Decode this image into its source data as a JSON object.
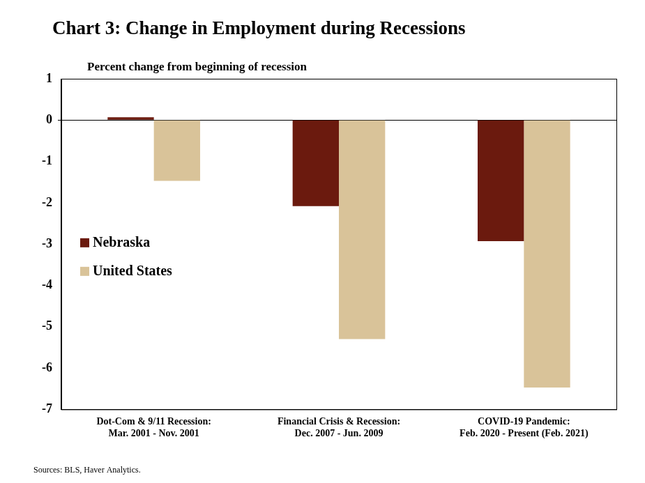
{
  "chart_data": {
    "type": "bar",
    "title": "Chart 3: Change in Employment during Recessions",
    "subtitle": "Percent change from beginning of recession",
    "source": "Sources: BLS, Haver Analytics.",
    "categories": [
      [
        "Dot-Com & 9/11 Recession:",
        "Mar. 2001 - Nov. 2001"
      ],
      [
        "Financial Crisis & Recession:",
        "Dec. 2007 - Jun. 2009"
      ],
      [
        "COVID-19 Pandemic:",
        "Feb. 2020 - Present (Feb. 2021)"
      ]
    ],
    "series": [
      {
        "name": "Nebraska",
        "color": "#6b1a0e",
        "values": [
          0.07,
          -2.08,
          -2.93
        ]
      },
      {
        "name": "United States",
        "color": "#d9c399",
        "values": [
          -1.47,
          -5.3,
          -6.47
        ]
      }
    ],
    "ylim": [
      -7,
      1
    ],
    "yticks": [
      -7,
      -6,
      -5,
      -4,
      -3,
      -2,
      -1,
      0,
      1
    ],
    "grid": false,
    "legend": "left"
  }
}
